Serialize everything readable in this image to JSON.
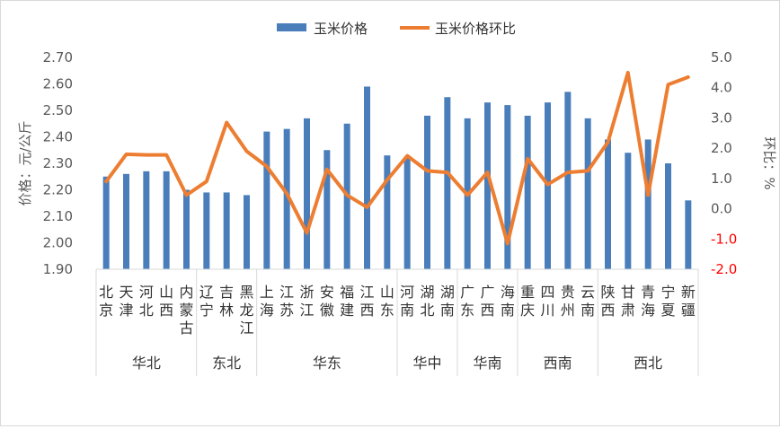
{
  "chart_data": {
    "type": "bar+line",
    "title": "",
    "legend": {
      "position": "top",
      "items": [
        {
          "label": "玉米价格",
          "color": "#4a7ebb",
          "kind": "bar"
        },
        {
          "label": "玉米价格环比",
          "color": "#ed7d31",
          "kind": "line"
        }
      ]
    },
    "y_left": {
      "label": "价格：元/公斤",
      "min": 1.9,
      "max": 2.7,
      "ticks": [
        "1.90",
        "2.00",
        "2.10",
        "2.20",
        "2.30",
        "2.40",
        "2.50",
        "2.60",
        "2.70"
      ]
    },
    "y_right": {
      "label": "环比：%",
      "min": -2.0,
      "max": 5.0,
      "ticks": [
        "-2.0",
        "-1.0",
        "0.0",
        "1.0",
        "2.0",
        "3.0",
        "4.0",
        "5.0"
      ],
      "negative_color": "#ff0000"
    },
    "provinces": [
      "北京",
      "天津",
      "河北",
      "山西",
      "内蒙古",
      "辽宁",
      "吉林",
      "黑龙江",
      "上海",
      "江苏",
      "浙江",
      "安徽",
      "福建",
      "江西",
      "山东",
      "河南",
      "湖北",
      "湖南",
      "广东",
      "广西",
      "海南",
      "重庆",
      "四川",
      "贵州",
      "云南",
      "陕西",
      "甘肃",
      "青海",
      "宁夏",
      "新疆"
    ],
    "regions": [
      {
        "name": "华北",
        "count": 5
      },
      {
        "name": "东北",
        "count": 3
      },
      {
        "name": "华东",
        "count": 7
      },
      {
        "name": "华中",
        "count": 3
      },
      {
        "name": "华南",
        "count": 3
      },
      {
        "name": "西南",
        "count": 4
      },
      {
        "name": "西北",
        "count": 5
      }
    ],
    "series": [
      {
        "name": "玉米价格",
        "axis": "left",
        "color": "#4a7ebb",
        "values": [
          2.25,
          2.26,
          2.27,
          2.27,
          2.2,
          2.19,
          2.19,
          2.18,
          2.42,
          2.43,
          2.47,
          2.35,
          2.45,
          2.59,
          2.33,
          2.32,
          2.48,
          2.55,
          2.47,
          2.53,
          2.52,
          2.48,
          2.53,
          2.57,
          2.47,
          2.39,
          2.34,
          2.39,
          2.3,
          2.16
        ]
      },
      {
        "name": "玉米价格环比",
        "axis": "right",
        "color": "#ed7d31",
        "values": [
          0.9,
          1.8,
          1.78,
          1.78,
          0.45,
          0.9,
          2.85,
          1.9,
          1.4,
          0.5,
          -0.8,
          1.3,
          0.45,
          0.05,
          0.95,
          1.75,
          1.25,
          1.2,
          0.45,
          1.2,
          -1.15,
          1.65,
          0.8,
          1.2,
          1.25,
          2.2,
          4.5,
          0.45,
          4.1,
          4.35
        ]
      }
    ]
  }
}
